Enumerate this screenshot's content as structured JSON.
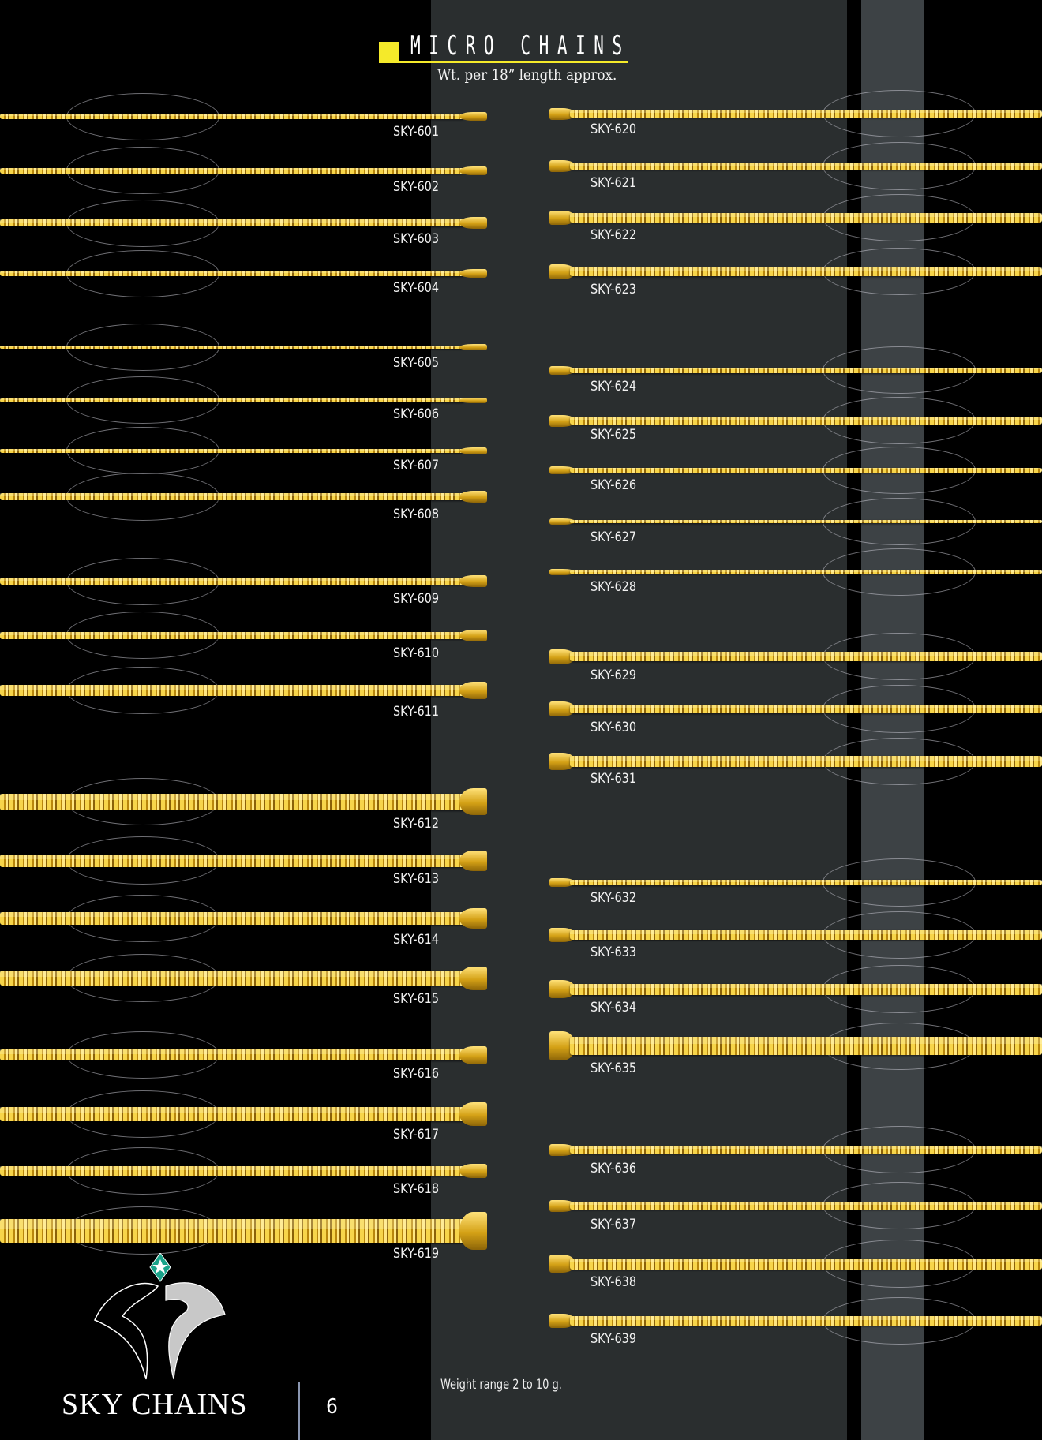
{
  "header": {
    "title": "MICRO CHAINS",
    "subtitle": "Wt. per 18” length approx.",
    "accent_color": "#f5ea2a"
  },
  "left_column": [
    "SKY-601",
    "SKY-602",
    "SKY-603",
    "SKY-604",
    "SKY-605",
    "SKY-606",
    "SKY-607",
    "SKY-608",
    "SKY-609",
    "SKY-610",
    "SKY-611",
    "SKY-612",
    "SKY-613",
    "SKY-614",
    "SKY-615",
    "SKY-616",
    "SKY-617",
    "SKY-618",
    "SKY-619"
  ],
  "right_column": [
    "SKY-620",
    "SKY-621",
    "SKY-622",
    "SKY-623",
    "SKY-624",
    "SKY-625",
    "SKY-626",
    "SKY-627",
    "SKY-628",
    "SKY-629",
    "SKY-630",
    "SKY-631",
    "SKY-632",
    "SKY-633",
    "SKY-634",
    "SKY-635",
    "SKY-636",
    "SKY-637",
    "SKY-638",
    "SKY-639"
  ],
  "footer": {
    "weight_note": "Weight range 2 to 10 g.",
    "brand": "SKY CHAINS",
    "page_number": "6",
    "logo_icon": "sky-chains-logo"
  },
  "colors": {
    "gold": "#e6b422",
    "logo_gem": "#1aa38a",
    "band": "#2a2e2f"
  }
}
